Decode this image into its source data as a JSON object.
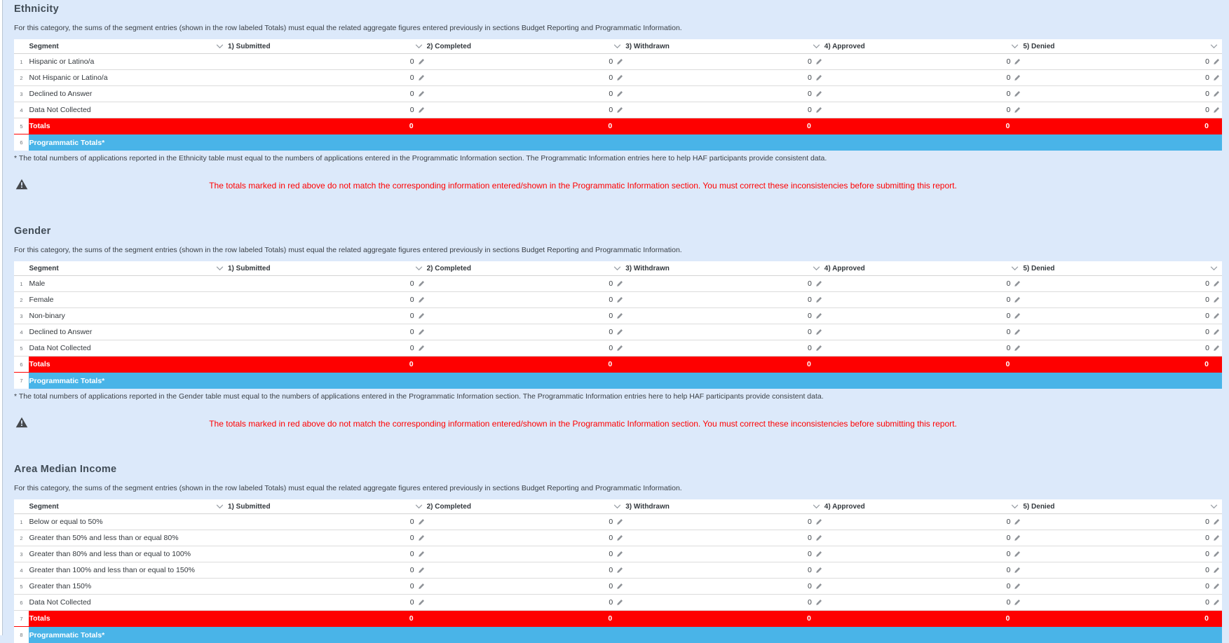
{
  "shared": {
    "category_description": "For this category, the sums of the segment entries (shown in the row labeled Totals) must equal the related aggregate figures entered previously in sections Budget Reporting and Programmatic Information.",
    "warning_message": "The totals marked in red above do not match the corresponding information entered/shown in the Programmatic Information section. You must correct these inconsistencies before submitting this report."
  },
  "table": {
    "columns": [
      "Segment",
      "1) Submitted",
      "2) Completed",
      "3) Withdrawn",
      "4) Approved",
      "5) Denied"
    ],
    "totals_label": "Totals",
    "programmatic_label": "Programmatic Totals*"
  },
  "colors": {
    "page_background": "#dce9fa",
    "totals_row": "#fe0000",
    "programmatic_row": "#49b4e8",
    "warning_text": "#ff0000"
  },
  "sections": [
    {
      "title": "Ethnicity",
      "rows": [
        {
          "num": "1",
          "label": "Hispanic or Latino/a",
          "values": [
            "0",
            "0",
            "0",
            "0",
            "0"
          ]
        },
        {
          "num": "2",
          "label": "Not Hispanic or Latino/a",
          "values": [
            "0",
            "0",
            "0",
            "0",
            "0"
          ]
        },
        {
          "num": "3",
          "label": "Declined to Answer",
          "values": [
            "0",
            "0",
            "0",
            "0",
            "0"
          ]
        },
        {
          "num": "4",
          "label": "Data Not Collected",
          "values": [
            "0",
            "0",
            "0",
            "0",
            "0"
          ]
        }
      ],
      "totals": {
        "num": "5",
        "values": [
          "0",
          "0",
          "0",
          "0",
          "0"
        ]
      },
      "programmatic": {
        "num": "6"
      },
      "footnote": "* The total numbers of applications reported in the Ethnicity table must equal to the numbers of applications entered in the Programmatic Information section. The Programmatic Information entries here to help HAF participants provide consistent data.",
      "show_warning": true
    },
    {
      "title": "Gender",
      "rows": [
        {
          "num": "1",
          "label": "Male",
          "values": [
            "0",
            "0",
            "0",
            "0",
            "0"
          ]
        },
        {
          "num": "2",
          "label": "Female",
          "values": [
            "0",
            "0",
            "0",
            "0",
            "0"
          ]
        },
        {
          "num": "3",
          "label": "Non-binary",
          "values": [
            "0",
            "0",
            "0",
            "0",
            "0"
          ]
        },
        {
          "num": "4",
          "label": "Declined to Answer",
          "values": [
            "0",
            "0",
            "0",
            "0",
            "0"
          ]
        },
        {
          "num": "5",
          "label": "Data Not Collected",
          "values": [
            "0",
            "0",
            "0",
            "0",
            "0"
          ]
        }
      ],
      "totals": {
        "num": "6",
        "values": [
          "0",
          "0",
          "0",
          "0",
          "0"
        ]
      },
      "programmatic": {
        "num": "7"
      },
      "footnote": "* The total numbers of applications reported in the Gender table must equal to the numbers of applications entered in the Programmatic Information section. The Programmatic Information entries here to help HAF participants provide consistent data.",
      "show_warning": true
    },
    {
      "title": "Area Median Income",
      "rows": [
        {
          "num": "1",
          "label": "Below or equal to 50%",
          "values": [
            "0",
            "0",
            "0",
            "0",
            "0"
          ]
        },
        {
          "num": "2",
          "label": "Greater than 50% and less than or equal 80%",
          "values": [
            "0",
            "0",
            "0",
            "0",
            "0"
          ]
        },
        {
          "num": "3",
          "label": "Greater than 80% and less than or equal to 100%",
          "values": [
            "0",
            "0",
            "0",
            "0",
            "0"
          ]
        },
        {
          "num": "4",
          "label": "Greater than 100% and less than or equal to 150%",
          "values": [
            "0",
            "0",
            "0",
            "0",
            "0"
          ]
        },
        {
          "num": "5",
          "label": "Greater than 150%",
          "values": [
            "0",
            "0",
            "0",
            "0",
            "0"
          ]
        },
        {
          "num": "6",
          "label": "Data Not Collected",
          "values": [
            "0",
            "0",
            "0",
            "0",
            "0"
          ]
        }
      ],
      "totals": {
        "num": "7",
        "values": [
          "0",
          "0",
          "0",
          "0",
          "0"
        ]
      },
      "programmatic": {
        "num": "8"
      },
      "footnote": null,
      "show_warning": false
    }
  ]
}
